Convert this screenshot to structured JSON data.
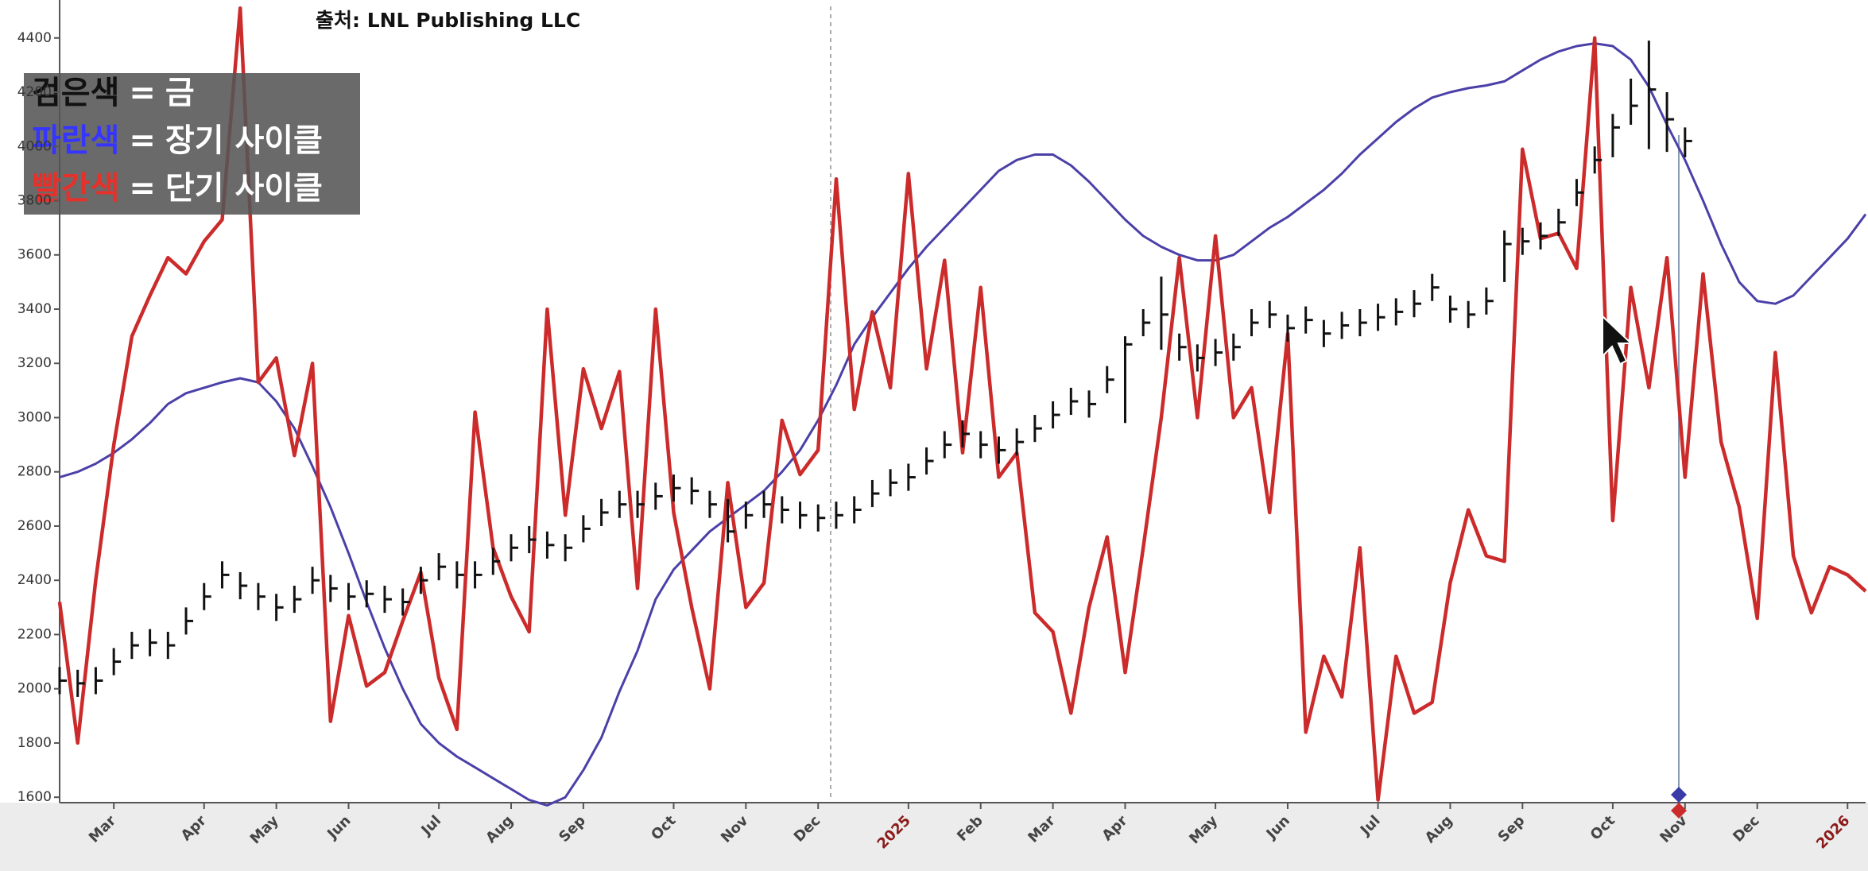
{
  "chart_data": {
    "type": "line",
    "source": "출처: LNL Publishing LLC",
    "legend": "upper left",
    "legend_separator": "=",
    "year_label_color": "#8b1c1c",
    "grid": false,
    "ylim": [
      1580,
      4540
    ],
    "yticks": [
      1600,
      1800,
      2000,
      2200,
      2400,
      2600,
      2800,
      3000,
      3200,
      3400,
      3600,
      3800,
      4000,
      4200,
      4400
    ],
    "categories": [
      null,
      null,
      null,
      "Mar",
      null,
      null,
      null,
      null,
      "Apr",
      null,
      null,
      null,
      "May",
      null,
      null,
      null,
      "Jun",
      null,
      null,
      null,
      null,
      "Jul",
      null,
      null,
      null,
      "Aug",
      null,
      null,
      null,
      "Sep",
      null,
      null,
      null,
      null,
      "Oct",
      null,
      null,
      null,
      "Nov",
      null,
      null,
      null,
      "Dec",
      null,
      null,
      null,
      null,
      "2025",
      null,
      null,
      null,
      "Feb",
      null,
      null,
      null,
      "Mar",
      null,
      null,
      null,
      "Apr",
      null,
      null,
      null,
      null,
      "May",
      null,
      null,
      null,
      "Jun",
      null,
      null,
      null,
      null,
      "Jul",
      null,
      null,
      null,
      "Aug",
      null,
      null,
      null,
      "Sep",
      null,
      null,
      null,
      null,
      "Oct",
      null,
      null,
      null,
      "Nov",
      null,
      null,
      null,
      "Dec",
      null,
      null,
      null,
      null,
      "2026",
      null
    ],
    "series": [
      {
        "name": "금",
        "label": "검은색",
        "label_color": "#111111",
        "color": "#111111",
        "style": "ohlc",
        "values": [
          2030,
          2020,
          2030,
          2100,
          2160,
          2170,
          2160,
          2250,
          2340,
          2420,
          2380,
          2340,
          2300,
          2330,
          2400,
          2370,
          2340,
          2350,
          2330,
          2320,
          2400,
          2450,
          2420,
          2420,
          2470,
          2520,
          2550,
          2530,
          2520,
          2590,
          2650,
          2680,
          2680,
          2710,
          2740,
          2730,
          2680,
          2580,
          2640,
          2680,
          2660,
          2640,
          2630,
          2640,
          2660,
          2720,
          2760,
          2780,
          2840,
          2900,
          2940,
          2900,
          2880,
          2910,
          2960,
          3010,
          3060,
          3050,
          3140,
          3270,
          3350,
          3380,
          3260,
          3220,
          3240,
          3260,
          3350,
          3380,
          3330,
          3360,
          3310,
          3340,
          3350,
          3370,
          3390,
          3420,
          3480,
          3400,
          3380,
          3430,
          3640,
          3650,
          3670,
          3720,
          3830,
          3950,
          4070,
          4150,
          4210,
          4100,
          4020,
          null,
          null,
          null,
          null,
          null,
          null,
          null,
          null,
          null,
          null
        ],
        "high": [
          2080,
          2070,
          2080,
          2150,
          2210,
          2220,
          2210,
          2300,
          2390,
          2470,
          2430,
          2390,
          2350,
          2380,
          2450,
          2420,
          2390,
          2400,
          2380,
          2370,
          2450,
          2500,
          2470,
          2470,
          2520,
          2570,
          2600,
          2580,
          2570,
          2640,
          2700,
          2730,
          2730,
          2760,
          2790,
          2780,
          2730,
          2700,
          2690,
          2730,
          2710,
          2690,
          2680,
          2690,
          2710,
          2770,
          2810,
          2830,
          2890,
          2950,
          2990,
          2950,
          2930,
          2960,
          3010,
          3060,
          3110,
          3100,
          3190,
          3300,
          3400,
          3520,
          3310,
          3270,
          3290,
          3310,
          3400,
          3430,
          3380,
          3410,
          3360,
          3390,
          3400,
          3420,
          3440,
          3470,
          3530,
          3450,
          3430,
          3480,
          3690,
          3700,
          3720,
          3770,
          3880,
          4000,
          4120,
          4250,
          4390,
          4200,
          4070,
          null,
          null,
          null,
          null,
          null,
          null,
          null,
          null,
          null,
          null
        ],
        "low": [
          1980,
          1970,
          1980,
          2050,
          2110,
          2120,
          2110,
          2200,
          2290,
          2370,
          2330,
          2290,
          2250,
          2280,
          2350,
          2320,
          2290,
          2300,
          2280,
          2270,
          2350,
          2400,
          2370,
          2370,
          2420,
          2470,
          2500,
          2480,
          2470,
          2540,
          2600,
          2630,
          2630,
          2660,
          2690,
          2680,
          2630,
          2540,
          2590,
          2630,
          2610,
          2590,
          2580,
          2590,
          2610,
          2670,
          2710,
          2730,
          2790,
          2850,
          2890,
          2850,
          2830,
          2860,
          2910,
          2960,
          3010,
          3000,
          3090,
          2980,
          3300,
          3250,
          3210,
          3170,
          3190,
          3210,
          3300,
          3330,
          3280,
          3310,
          3260,
          3290,
          3300,
          3320,
          3340,
          3370,
          3430,
          3350,
          3330,
          3380,
          3500,
          3600,
          3620,
          3670,
          3780,
          3900,
          3960,
          4080,
          3990,
          3980,
          3960,
          null,
          null,
          null,
          null,
          null,
          null,
          null,
          null,
          null,
          null
        ]
      },
      {
        "name": "장기 사이클",
        "label": "파란색",
        "label_color": "#3535ff",
        "color": "#4a40a8",
        "values": [
          2780,
          2800,
          2830,
          2870,
          2920,
          2980,
          3050,
          3090,
          3110,
          3130,
          3145,
          3130,
          3060,
          2960,
          2820,
          2670,
          2500,
          2320,
          2150,
          2000,
          1870,
          1800,
          1750,
          1710,
          1670,
          1630,
          1590,
          1570,
          1600,
          1700,
          1820,
          1990,
          2140,
          2330,
          2440,
          2510,
          2580,
          2630,
          2680,
          2730,
          2800,
          2880,
          2990,
          3120,
          3270,
          3370,
          3460,
          3550,
          3630,
          3700,
          3770,
          3840,
          3910,
          3950,
          3970,
          3970,
          3930,
          3870,
          3800,
          3730,
          3670,
          3630,
          3600,
          3580,
          3580,
          3600,
          3650,
          3700,
          3740,
          3790,
          3840,
          3900,
          3970,
          4030,
          4090,
          4140,
          4180,
          4200,
          4215,
          4225,
          4240,
          4280,
          4320,
          4350,
          4370,
          4380,
          4370,
          4320,
          4220,
          4080,
          3950,
          3800,
          3640,
          3500,
          3430,
          3420,
          3450,
          3520,
          3590,
          3660,
          3750
        ]
      },
      {
        "name": "단기 사이클",
        "label": "빨간색",
        "label_color": "#e8302a",
        "color": "#cc2b2b",
        "values": [
          2320,
          1800,
          2400,
          2900,
          3300,
          3450,
          3590,
          3530,
          3650,
          3730,
          4510,
          3130,
          3220,
          2860,
          3200,
          1880,
          2270,
          2010,
          2060,
          2250,
          2430,
          2040,
          1850,
          3020,
          2520,
          2340,
          2210,
          3400,
          2640,
          3180,
          2960,
          3170,
          2370,
          3400,
          2650,
          2300,
          2000,
          2760,
          2300,
          2390,
          2990,
          2790,
          2880,
          3880,
          3030,
          3390,
          3110,
          3900,
          3180,
          3580,
          2870,
          3480,
          2780,
          2870,
          2280,
          2210,
          1910,
          2300,
          2560,
          2060,
          2520,
          3000,
          3590,
          3000,
          3670,
          3000,
          3110,
          2650,
          3310,
          1840,
          2120,
          1970,
          2520,
          1590,
          2120,
          1910,
          1950,
          2390,
          2660,
          2490,
          2470,
          3990,
          3660,
          3680,
          3550,
          4400,
          2620,
          3480,
          3110,
          3590,
          2780,
          3530,
          2910,
          2670,
          2260,
          3240,
          2490,
          2280,
          2450,
          2420,
          2360
        ]
      }
    ]
  }
}
